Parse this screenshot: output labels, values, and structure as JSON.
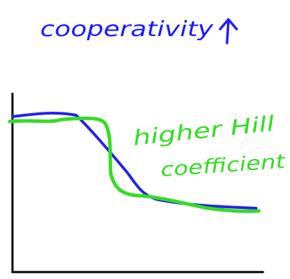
{
  "title": "cooperativity",
  "annotation": [
    "higher Hill",
    "coefficient"
  ]
}
